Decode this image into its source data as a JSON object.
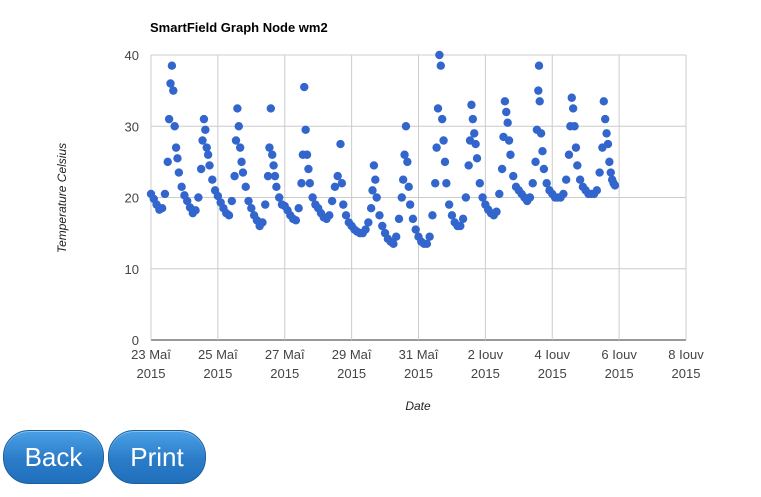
{
  "chart_data": {
    "type": "scatter",
    "title": "SmartField Graph Node wm2",
    "xlabel": "Date",
    "ylabel": "Temperature Celsius",
    "ylim": [
      0,
      40
    ],
    "yticks": [
      0,
      10,
      20,
      30,
      40
    ],
    "xlim": [
      "2015-05-23",
      "2015-06-08"
    ],
    "xticks": [
      {
        "line1": "23 Maî",
        "line2": "2015",
        "date": "2015-05-23"
      },
      {
        "line1": "25 Maî",
        "line2": "2015",
        "date": "2015-05-25"
      },
      {
        "line1": "27 Maî",
        "line2": "2015",
        "date": "2015-05-27"
      },
      {
        "line1": "29 Maî",
        "line2": "2015",
        "date": "2015-05-29"
      },
      {
        "line1": "31 Maî",
        "line2": "2015",
        "date": "2015-05-31"
      },
      {
        "line1": "2 Iouv",
        "line2": "2015",
        "date": "2015-06-02"
      },
      {
        "line1": "4 Iouv",
        "line2": "2015",
        "date": "2015-06-04"
      },
      {
        "line1": "6 Iouv",
        "line2": "2015",
        "date": "2015-06-06"
      },
      {
        "line1": "8 Iouv",
        "line2": "2015",
        "date": "2015-06-08"
      }
    ],
    "grid": true,
    "marker_color": "#3366cc",
    "series": [
      {
        "points": [
          [
            "2015-05-23 00:00",
            20.5
          ],
          [
            "2015-05-23 02:00",
            19.8
          ],
          [
            "2015-05-23 04:00",
            19.0
          ],
          [
            "2015-05-23 06:00",
            18.3
          ],
          [
            "2015-05-23 08:00",
            18.5
          ],
          [
            "2015-05-23 10:00",
            20.5
          ],
          [
            "2015-05-23 12:00",
            25.0
          ],
          [
            "2015-05-23 13:00",
            31.0
          ],
          [
            "2015-05-23 14:00",
            36.0
          ],
          [
            "2015-05-23 15:00",
            38.5
          ],
          [
            "2015-05-23 16:00",
            35.0
          ],
          [
            "2015-05-23 17:00",
            30.0
          ],
          [
            "2015-05-23 18:00",
            27.0
          ],
          [
            "2015-05-23 19:00",
            25.5
          ],
          [
            "2015-05-23 20:00",
            23.5
          ],
          [
            "2015-05-23 22:00",
            21.5
          ],
          [
            "2015-05-24 00:00",
            20.3
          ],
          [
            "2015-05-24 02:00",
            19.5
          ],
          [
            "2015-05-24 04:00",
            18.6
          ],
          [
            "2015-05-24 06:00",
            17.8
          ],
          [
            "2015-05-24 08:00",
            18.2
          ],
          [
            "2015-05-24 10:00",
            20.0
          ],
          [
            "2015-05-24 12:00",
            24.0
          ],
          [
            "2015-05-24 13:00",
            28.0
          ],
          [
            "2015-05-24 14:00",
            31.0
          ],
          [
            "2015-05-24 15:00",
            29.5
          ],
          [
            "2015-05-24 16:00",
            27.0
          ],
          [
            "2015-05-24 17:00",
            26.0
          ],
          [
            "2015-05-24 18:00",
            24.5
          ],
          [
            "2015-05-24 20:00",
            22.5
          ],
          [
            "2015-05-24 22:00",
            21.0
          ],
          [
            "2015-05-25 00:00",
            20.2
          ],
          [
            "2015-05-25 02:00",
            19.3
          ],
          [
            "2015-05-25 04:00",
            18.5
          ],
          [
            "2015-05-25 06:00",
            17.8
          ],
          [
            "2015-05-25 08:00",
            17.5
          ],
          [
            "2015-05-25 10:00",
            19.5
          ],
          [
            "2015-05-25 12:00",
            23.0
          ],
          [
            "2015-05-25 13:00",
            28.0
          ],
          [
            "2015-05-25 14:00",
            32.5
          ],
          [
            "2015-05-25 15:00",
            30.0
          ],
          [
            "2015-05-25 16:00",
            27.0
          ],
          [
            "2015-05-25 17:00",
            25.0
          ],
          [
            "2015-05-25 18:00",
            23.5
          ],
          [
            "2015-05-25 20:00",
            21.5
          ],
          [
            "2015-05-25 22:00",
            19.5
          ],
          [
            "2015-05-26 00:00",
            18.5
          ],
          [
            "2015-05-26 02:00",
            17.5
          ],
          [
            "2015-05-26 04:00",
            16.8
          ],
          [
            "2015-05-26 06:00",
            16.0
          ],
          [
            "2015-05-26 08:00",
            16.5
          ],
          [
            "2015-05-26 10:00",
            19.0
          ],
          [
            "2015-05-26 12:00",
            23.0
          ],
          [
            "2015-05-26 13:00",
            27.0
          ],
          [
            "2015-05-26 14:00",
            32.5
          ],
          [
            "2015-05-26 15:00",
            26.0
          ],
          [
            "2015-05-26 16:00",
            24.5
          ],
          [
            "2015-05-26 17:00",
            23.0
          ],
          [
            "2015-05-26 18:00",
            21.5
          ],
          [
            "2015-05-26 20:00",
            20.0
          ],
          [
            "2015-05-26 22:00",
            19.0
          ],
          [
            "2015-05-27 00:00",
            18.8
          ],
          [
            "2015-05-27 02:00",
            18.2
          ],
          [
            "2015-05-27 04:00",
            17.5
          ],
          [
            "2015-05-27 06:00",
            17.0
          ],
          [
            "2015-05-27 08:00",
            16.8
          ],
          [
            "2015-05-27 10:00",
            18.5
          ],
          [
            "2015-05-27 12:00",
            22.0
          ],
          [
            "2015-05-27 13:00",
            26.0
          ],
          [
            "2015-05-27 14:00",
            35.5
          ],
          [
            "2015-05-27 15:00",
            29.5
          ],
          [
            "2015-05-27 16:00",
            26.0
          ],
          [
            "2015-05-27 17:00",
            24.0
          ],
          [
            "2015-05-27 18:00",
            22.0
          ],
          [
            "2015-05-27 20:00",
            20.0
          ],
          [
            "2015-05-27 22:00",
            19.0
          ],
          [
            "2015-05-28 00:00",
            18.5
          ],
          [
            "2015-05-28 02:00",
            17.8
          ],
          [
            "2015-05-28 04:00",
            17.2
          ],
          [
            "2015-05-28 06:00",
            17.0
          ],
          [
            "2015-05-28 08:00",
            17.5
          ],
          [
            "2015-05-28 10:00",
            19.5
          ],
          [
            "2015-05-28 12:00",
            21.5
          ],
          [
            "2015-05-28 14:00",
            23.0
          ],
          [
            "2015-05-28 16:00",
            27.5
          ],
          [
            "2015-05-28 17:00",
            22.0
          ],
          [
            "2015-05-28 18:00",
            19.0
          ],
          [
            "2015-05-28 20:00",
            17.5
          ],
          [
            "2015-05-28 22:00",
            16.5
          ],
          [
            "2015-05-29 00:00",
            16.0
          ],
          [
            "2015-05-29 02:00",
            15.5
          ],
          [
            "2015-05-29 04:00",
            15.2
          ],
          [
            "2015-05-29 06:00",
            15.0
          ],
          [
            "2015-05-29 08:00",
            15.0
          ],
          [
            "2015-05-29 10:00",
            15.5
          ],
          [
            "2015-05-29 12:00",
            16.5
          ],
          [
            "2015-05-29 14:00",
            18.5
          ],
          [
            "2015-05-29 15:00",
            21.0
          ],
          [
            "2015-05-29 16:00",
            24.5
          ],
          [
            "2015-05-29 17:00",
            22.5
          ],
          [
            "2015-05-29 18:00",
            20.0
          ],
          [
            "2015-05-29 20:00",
            17.5
          ],
          [
            "2015-05-29 22:00",
            16.0
          ],
          [
            "2015-05-30 00:00",
            15.0
          ],
          [
            "2015-05-30 02:00",
            14.2
          ],
          [
            "2015-05-30 04:00",
            13.8
          ],
          [
            "2015-05-30 06:00",
            13.5
          ],
          [
            "2015-05-30 08:00",
            14.5
          ],
          [
            "2015-05-30 10:00",
            17.0
          ],
          [
            "2015-05-30 12:00",
            20.0
          ],
          [
            "2015-05-30 13:00",
            22.5
          ],
          [
            "2015-05-30 14:00",
            26.0
          ],
          [
            "2015-05-30 15:00",
            30.0
          ],
          [
            "2015-05-30 16:00",
            25.0
          ],
          [
            "2015-05-30 17:00",
            21.5
          ],
          [
            "2015-05-30 18:00",
            19.0
          ],
          [
            "2015-05-30 20:00",
            17.0
          ],
          [
            "2015-05-30 22:00",
            15.5
          ],
          [
            "2015-05-31 00:00",
            14.5
          ],
          [
            "2015-05-31 02:00",
            13.8
          ],
          [
            "2015-05-31 04:00",
            13.5
          ],
          [
            "2015-05-31 06:00",
            13.5
          ],
          [
            "2015-05-31 08:00",
            14.5
          ],
          [
            "2015-05-31 10:00",
            17.5
          ],
          [
            "2015-05-31 12:00",
            22.0
          ],
          [
            "2015-05-31 13:00",
            27.0
          ],
          [
            "2015-05-31 14:00",
            32.5
          ],
          [
            "2015-05-31 15:00",
            40.0
          ],
          [
            "2015-05-31 16:00",
            38.5
          ],
          [
            "2015-05-31 17:00",
            31.0
          ],
          [
            "2015-05-31 18:00",
            28.0
          ],
          [
            "2015-05-31 19:00",
            25.0
          ],
          [
            "2015-05-31 20:00",
            22.0
          ],
          [
            "2015-05-31 22:00",
            19.0
          ],
          [
            "2015-06-01 00:00",
            17.5
          ],
          [
            "2015-06-01 02:00",
            16.5
          ],
          [
            "2015-06-01 04:00",
            16.0
          ],
          [
            "2015-06-01 06:00",
            16.0
          ],
          [
            "2015-06-01 08:00",
            17.0
          ],
          [
            "2015-06-01 10:00",
            20.0
          ],
          [
            "2015-06-01 12:00",
            24.5
          ],
          [
            "2015-06-01 13:00",
            28.0
          ],
          [
            "2015-06-01 14:00",
            33.0
          ],
          [
            "2015-06-01 15:00",
            31.0
          ],
          [
            "2015-06-01 16:00",
            29.0
          ],
          [
            "2015-06-01 17:00",
            27.5
          ],
          [
            "2015-06-01 18:00",
            25.5
          ],
          [
            "2015-06-01 20:00",
            22.0
          ],
          [
            "2015-06-01 22:00",
            20.0
          ],
          [
            "2015-06-02 00:00",
            19.0
          ],
          [
            "2015-06-02 02:00",
            18.3
          ],
          [
            "2015-06-02 04:00",
            17.8
          ],
          [
            "2015-06-02 06:00",
            17.5
          ],
          [
            "2015-06-02 08:00",
            18.0
          ],
          [
            "2015-06-02 10:00",
            20.5
          ],
          [
            "2015-06-02 12:00",
            24.0
          ],
          [
            "2015-06-02 13:00",
            28.5
          ],
          [
            "2015-06-02 14:00",
            33.5
          ],
          [
            "2015-06-02 15:00",
            32.0
          ],
          [
            "2015-06-02 16:00",
            30.5
          ],
          [
            "2015-06-02 17:00",
            28.0
          ],
          [
            "2015-06-02 18:00",
            26.0
          ],
          [
            "2015-06-02 20:00",
            23.0
          ],
          [
            "2015-06-02 22:00",
            21.5
          ],
          [
            "2015-06-03 00:00",
            21.0
          ],
          [
            "2015-06-03 02:00",
            20.5
          ],
          [
            "2015-06-03 04:00",
            20.0
          ],
          [
            "2015-06-03 06:00",
            19.5
          ],
          [
            "2015-06-03 08:00",
            20.0
          ],
          [
            "2015-06-03 10:00",
            22.0
          ],
          [
            "2015-06-03 12:00",
            25.0
          ],
          [
            "2015-06-03 13:00",
            29.5
          ],
          [
            "2015-06-03 14:00",
            35.0
          ],
          [
            "2015-06-03 14:30",
            38.5
          ],
          [
            "2015-06-03 15:00",
            33.5
          ],
          [
            "2015-06-03 16:00",
            29.0
          ],
          [
            "2015-06-03 17:00",
            26.5
          ],
          [
            "2015-06-03 18:00",
            24.0
          ],
          [
            "2015-06-03 20:00",
            22.0
          ],
          [
            "2015-06-03 22:00",
            21.0
          ],
          [
            "2015-06-04 00:00",
            20.5
          ],
          [
            "2015-06-04 02:00",
            20.0
          ],
          [
            "2015-06-04 04:00",
            20.0
          ],
          [
            "2015-06-04 06:00",
            20.0
          ],
          [
            "2015-06-04 08:00",
            20.5
          ],
          [
            "2015-06-04 10:00",
            22.5
          ],
          [
            "2015-06-04 12:00",
            26.0
          ],
          [
            "2015-06-04 13:00",
            30.0
          ],
          [
            "2015-06-04 14:00",
            34.0
          ],
          [
            "2015-06-04 15:00",
            32.5
          ],
          [
            "2015-06-04 16:00",
            30.0
          ],
          [
            "2015-06-04 17:00",
            27.0
          ],
          [
            "2015-06-04 18:00",
            24.5
          ],
          [
            "2015-06-04 20:00",
            22.5
          ],
          [
            "2015-06-04 22:00",
            21.5
          ],
          [
            "2015-06-05 00:00",
            21.0
          ],
          [
            "2015-06-05 02:00",
            20.5
          ],
          [
            "2015-06-05 04:00",
            20.5
          ],
          [
            "2015-06-05 06:00",
            20.5
          ],
          [
            "2015-06-05 08:00",
            21.0
          ],
          [
            "2015-06-05 10:00",
            23.5
          ],
          [
            "2015-06-05 12:00",
            27.0
          ],
          [
            "2015-06-05 13:00",
            33.5
          ],
          [
            "2015-06-05 14:00",
            31.0
          ],
          [
            "2015-06-05 15:00",
            29.0
          ],
          [
            "2015-06-05 16:00",
            27.5
          ],
          [
            "2015-06-05 17:00",
            25.0
          ],
          [
            "2015-06-05 18:00",
            23.5
          ],
          [
            "2015-06-05 19:00",
            22.5
          ],
          [
            "2015-06-05 20:00",
            22.0
          ],
          [
            "2015-06-05 21:00",
            21.7
          ]
        ]
      }
    ]
  },
  "buttons": {
    "back_label": "Back",
    "print_label": "Print"
  }
}
